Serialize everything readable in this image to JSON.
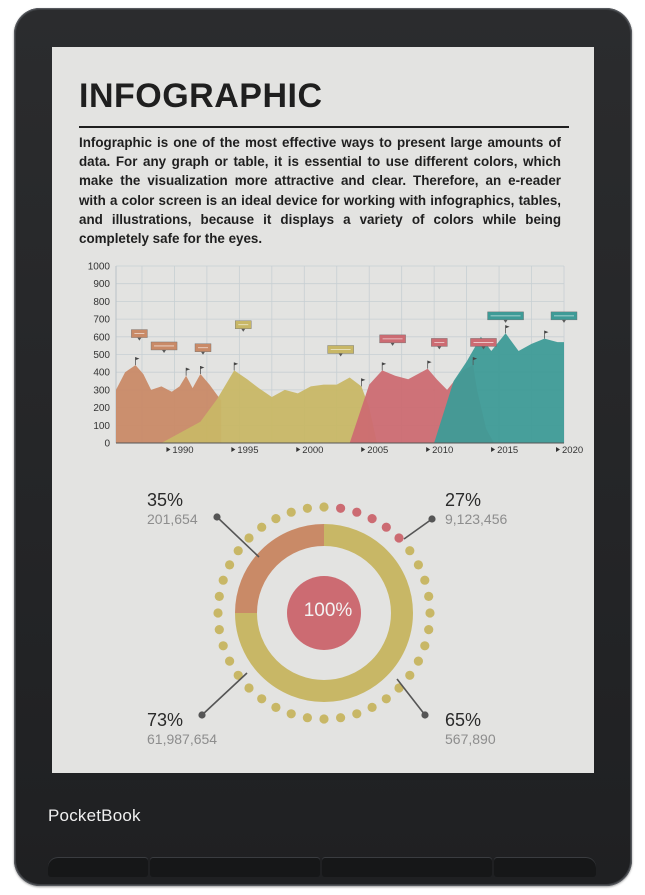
{
  "page": {
    "title": "INFOGRAPHIC",
    "body": "Infographic is one of the most effective ways to present large amounts of data. For any graph or table, it is essential to use different colors, which make the visualization more attractive and clear. Therefore, an e-reader with a color screen is an ideal device for working with infographics, tables, and illustrations, because it displays a variety of colors while being completely safe for the eyes."
  },
  "device": {
    "brand": "PocketBook"
  },
  "colors": {
    "brown": "#c98a67",
    "olive": "#c8b766",
    "rose": "#cc6b72",
    "teal": "#3e9b97",
    "grid": "#c7cfd3",
    "screen": "#e3e3e1"
  },
  "chart_data": [
    {
      "type": "area",
      "ylim": [
        0,
        1000
      ],
      "y_ticks": [
        "1000",
        "900",
        "800",
        "700",
        "600",
        "500",
        "400",
        "300",
        "200",
        "100",
        "0"
      ],
      "x_ticks": [
        "1990",
        "1995",
        "2000",
        "2005",
        "2010",
        "2015",
        "2020"
      ],
      "x_range": [
        1985.5,
        2020
      ],
      "series": [
        {
          "color": "#c98a67",
          "points": [
            [
              1985.5,
              300
            ],
            [
              1986.2,
              400
            ],
            [
              1987,
              440
            ],
            [
              1987.6,
              390
            ],
            [
              1988.2,
              300
            ],
            [
              1989,
              320
            ],
            [
              1989.8,
              290
            ],
            [
              1990.4,
              320
            ],
            [
              1990.9,
              380
            ],
            [
              1991.4,
              310
            ],
            [
              1992,
              390
            ],
            [
              1992.7,
              330
            ],
            [
              1993.3,
              270
            ],
            [
              1993.6,
              240
            ]
          ]
        },
        {
          "color": "#c8b766",
          "points": [
            [
              1989,
              0
            ],
            [
              1992,
              120
            ],
            [
              1993.3,
              250
            ],
            [
              1994.6,
              410
            ],
            [
              1995.6,
              360
            ],
            [
              1996.5,
              310
            ],
            [
              1997.5,
              260
            ],
            [
              1998.5,
              300
            ],
            [
              1999.5,
              280
            ],
            [
              2000.5,
              320
            ],
            [
              2001.5,
              330
            ],
            [
              2002.5,
              330
            ],
            [
              2003.5,
              370
            ],
            [
              2004.4,
              320
            ],
            [
              2005,
              200
            ],
            [
              2005.6,
              0
            ]
          ]
        },
        {
          "color": "#cc6b72",
          "points": [
            [
              2003.5,
              0
            ],
            [
              2005,
              330
            ],
            [
              2006,
              410
            ],
            [
              2007,
              380
            ],
            [
              2008,
              360
            ],
            [
              2009.5,
              420
            ],
            [
              2010.2,
              360
            ],
            [
              2011,
              300
            ],
            [
              2012.2,
              410
            ],
            [
              2013,
              440
            ],
            [
              2013.3,
              300
            ],
            [
              2014,
              80
            ],
            [
              2014.6,
              0
            ]
          ]
        },
        {
          "color": "#3e9b97",
          "points": [
            [
              2010,
              0
            ],
            [
              2011.5,
              350
            ],
            [
              2012.5,
              460
            ],
            [
              2013.6,
              600
            ],
            [
              2014.4,
              520
            ],
            [
              2015.5,
              620
            ],
            [
              2016.5,
              520
            ],
            [
              2017.5,
              560
            ],
            [
              2018.5,
              590
            ],
            [
              2019.5,
              570
            ],
            [
              2020,
              570
            ],
            [
              2020,
              0
            ]
          ]
        }
      ],
      "annotations": [
        {
          "x": 1987.3,
          "y": 590,
          "color": "#c98a67",
          "size": "small"
        },
        {
          "x": 1989.2,
          "y": 520,
          "color": "#c98a67",
          "size": "large"
        },
        {
          "x": 1992.2,
          "y": 510,
          "color": "#c98a67",
          "size": "small"
        },
        {
          "x": 1995.3,
          "y": 640,
          "color": "#c8b766",
          "size": "small"
        },
        {
          "x": 2002.8,
          "y": 500,
          "color": "#c8b766",
          "size": "large"
        },
        {
          "x": 2006.8,
          "y": 560,
          "color": "#cc6b72",
          "size": "large"
        },
        {
          "x": 2010.4,
          "y": 540,
          "color": "#cc6b72",
          "size": "small"
        },
        {
          "x": 2013.8,
          "y": 540,
          "color": "#cc6b72",
          "size": "large"
        },
        {
          "x": 2015.5,
          "y": 690,
          "color": "#3e9b97",
          "size": "xlarge"
        },
        {
          "x": 2020,
          "y": 690,
          "color": "#3e9b97",
          "size": "large"
        }
      ]
    },
    {
      "type": "pie",
      "center_label": "100%",
      "segments": [
        {
          "fraction": 0.25,
          "color": "#c98a67"
        },
        {
          "fraction": 0.75,
          "color": "#c8b766"
        }
      ],
      "dots": {
        "count": 40,
        "colors": [
          "#c8b766",
          "#cc6b72"
        ]
      },
      "stats": [
        {
          "pct": "35%",
          "value": "201,654"
        },
        {
          "pct": "27%",
          "value": "9,123,456"
        },
        {
          "pct": "73%",
          "value": "61,987,654"
        },
        {
          "pct": "65%",
          "value": "567,890"
        }
      ]
    }
  ]
}
